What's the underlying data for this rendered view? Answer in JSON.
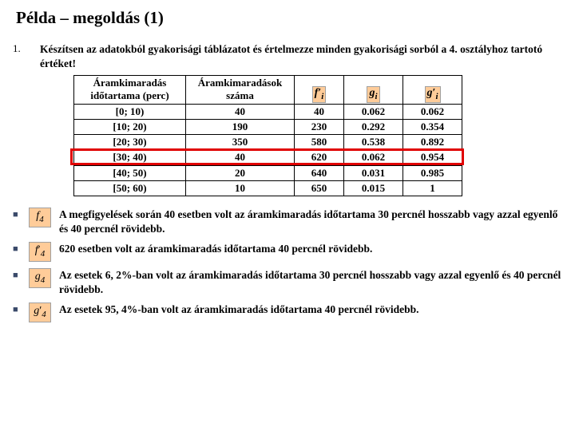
{
  "title": "Példa – megoldás (1)",
  "task": {
    "num": "1.",
    "text": "Készítsen az adatokból gyakorisági táblázatot és értelmezze minden gyakorisági sorból a 4. osztályhoz tartotó értéket!"
  },
  "table": {
    "headers": {
      "c0": "Áramkimaradás időtartama (perc)",
      "c1": "Áramkimaradások száma",
      "c2": "f'ᵢ",
      "c3": "gᵢ",
      "c4": "g'ᵢ"
    },
    "rows": [
      {
        "c0": "[0; 10)",
        "c1": "40",
        "c2": "40",
        "c3": "0.062",
        "c4": "0.062"
      },
      {
        "c0": "[10; 20)",
        "c1": "190",
        "c2": "230",
        "c3": "0.292",
        "c4": "0.354"
      },
      {
        "c0": "[20; 30)",
        "c1": "350",
        "c2": "580",
        "c3": "0.538",
        "c4": "0.892"
      },
      {
        "c0": "[30; 40)",
        "c1": "40",
        "c2": "620",
        "c3": "0.062",
        "c4": "0.954"
      },
      {
        "c0": "[40; 50)",
        "c1": "20",
        "c2": "640",
        "c3": "0.031",
        "c4": "0.985"
      },
      {
        "c0": "[50; 60)",
        "c1": "10",
        "c2": "650",
        "c3": "0.015",
        "c4": "1"
      }
    ],
    "highlight_row_index": 3,
    "highlight_color": "#e00000",
    "formula_bg": "#ffcc99"
  },
  "bullets": [
    {
      "sym": "f₄",
      "text": "A megfigyelések során 40 esetben volt az áramkimaradás időtartama 30 percnél hosszabb vagy azzal egyenlő és 40 percnél rövidebb."
    },
    {
      "sym": "f'₄",
      "text": "620 esetben volt az áramkimaradás időtartama 40 percnél rövidebb."
    },
    {
      "sym": "g₄",
      "text": "Az esetek 6, 2%-ban volt az áramkimaradás időtartama 30 percnél hosszabb vagy azzal  egyenlő és 40 percnél rövidebb."
    },
    {
      "sym": "g'₄",
      "text": "Az esetek 95, 4%-ban volt az áramkimaradás időtartama 40 percnél rövidebb."
    }
  ]
}
